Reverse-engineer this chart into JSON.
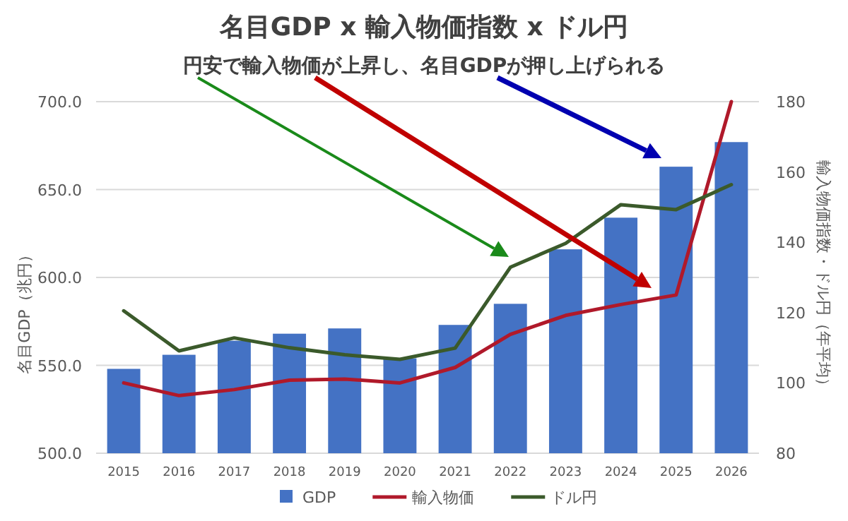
{
  "chart_data": {
    "type": "bar",
    "title": "名目GDP x 輸入物価指数 x ドル円",
    "subtitle": "円安で輸入物価が上昇し、名目GDPが押し上げられる",
    "ylabel": "名目GDP（兆円）",
    "y2label": "輸入物価指数・ドル円（年平均）",
    "categories": [
      "2015",
      "2016",
      "2017",
      "2018",
      "2019",
      "2020",
      "2021",
      "2022",
      "2023",
      "2024",
      "2025",
      "2026"
    ],
    "series": [
      {
        "name": "GDP",
        "color": "#4472c4",
        "values": [
          548,
          556,
          564,
          568,
          571,
          554,
          573,
          585,
          616,
          634,
          663,
          677
        ]
      },
      {
        "name": "輸入物価",
        "type": "line",
        "axis": "y2",
        "color": "#b0192a",
        "values": [
          100.0,
          96.4,
          98.1,
          100.8,
          101.1,
          100.0,
          104.4,
          113.8,
          119.2,
          122.3,
          125.0,
          180
        ]
      },
      {
        "name": "ドル円",
        "type": "line",
        "axis": "y2",
        "color": "#3b5a2b",
        "values": [
          120.5,
          109.1,
          112.8,
          110.0,
          108.0,
          106.7,
          109.9,
          132.9,
          139.7,
          150.7,
          149.3,
          156.4
        ]
      }
    ],
    "ylim": [
      500,
      700
    ],
    "yticks": [
      {
        "value": 500,
        "label": "500.0"
      },
      {
        "value": 550,
        "label": "550.0"
      },
      {
        "value": 600,
        "label": "600.0"
      },
      {
        "value": 650,
        "label": "650.0"
      },
      {
        "value": 700,
        "label": "700.0"
      }
    ],
    "y2lim": [
      80,
      180
    ],
    "y2ticks": [
      80,
      100,
      120,
      140,
      160,
      180
    ],
    "grid": "y",
    "legend": "bottom"
  }
}
